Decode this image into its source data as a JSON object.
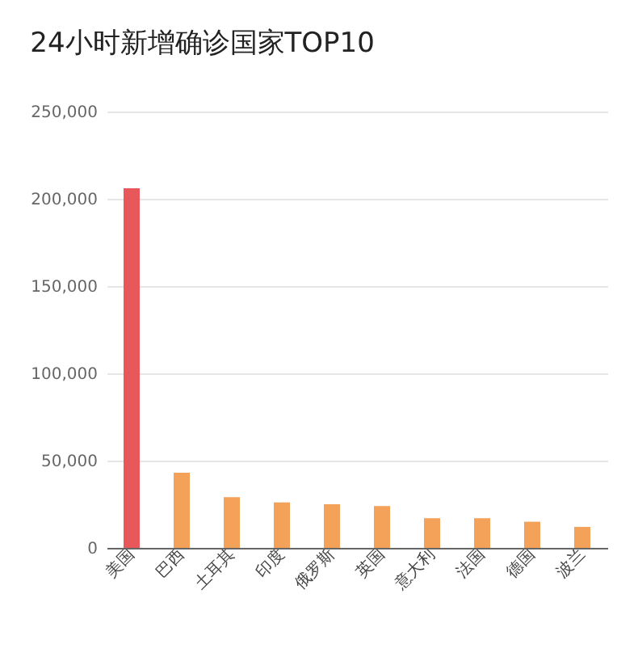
{
  "chart_data": {
    "type": "bar",
    "title": "24小时新增确诊国家TOP10",
    "categories": [
      "美国",
      "巴西",
      "土耳其",
      "印度",
      "俄罗斯",
      "英国",
      "意大利",
      "法国",
      "德国",
      "波兰"
    ],
    "values": [
      206000,
      43000,
      29000,
      26000,
      25000,
      24000,
      17000,
      17000,
      15000,
      12000
    ],
    "colors": [
      "#e8575a",
      "#f4a15a",
      "#f4a15a",
      "#f4a15a",
      "#f4a15a",
      "#f4a15a",
      "#f4a15a",
      "#f4a15a",
      "#f4a15a",
      "#f4a15a"
    ],
    "ylim": [
      0,
      250000
    ],
    "yticks": [
      0,
      {
        "value": 50000,
        "label": "50,000"
      },
      {
        "value": 100000,
        "label": "100,000"
      },
      {
        "value": 150000,
        "label": "150,000"
      },
      {
        "value": 200000,
        "label": "200,000"
      },
      {
        "value": 250000,
        "label": "250,000"
      }
    ],
    "grid": "y"
  }
}
